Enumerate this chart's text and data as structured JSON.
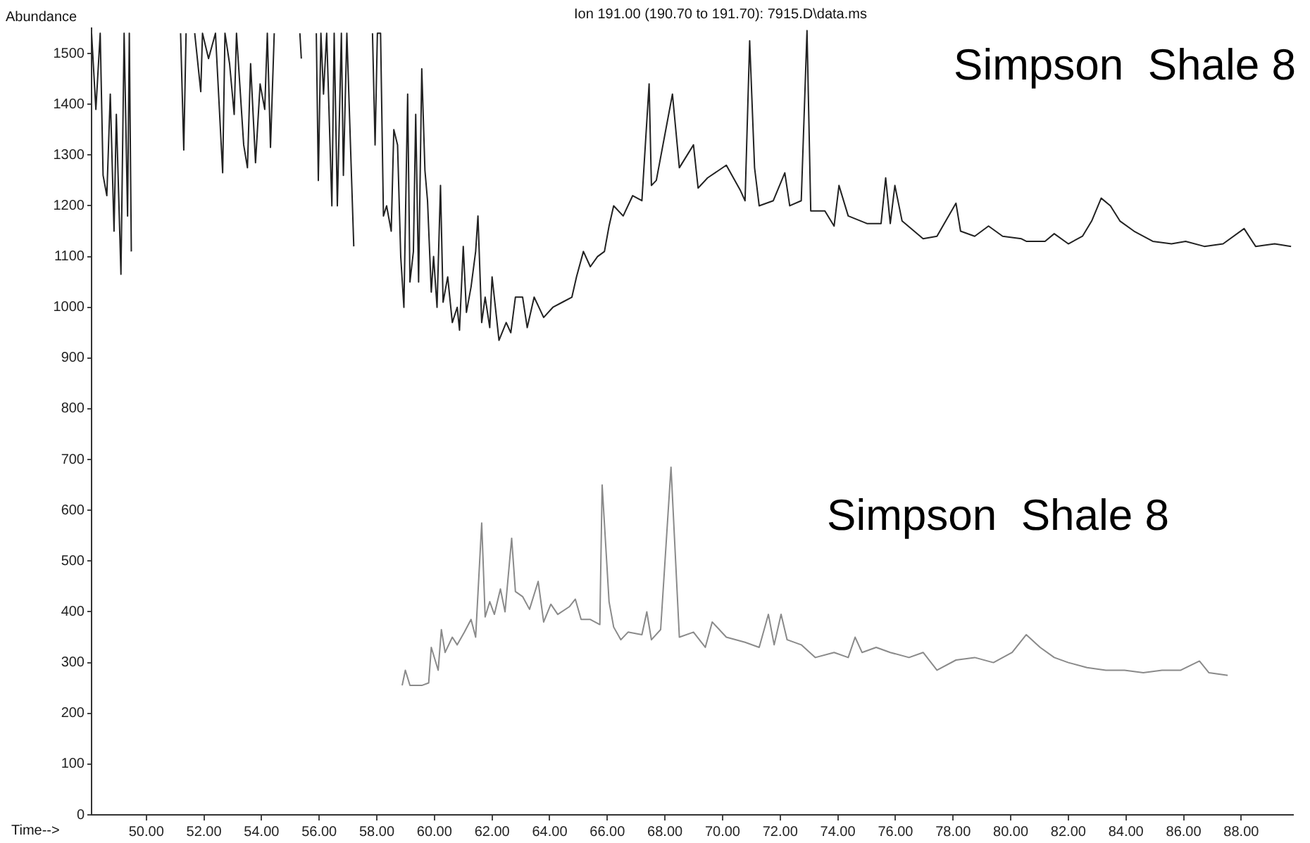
{
  "chart_data": {
    "type": "line",
    "title": "Ion 191.00 (190.70 to 191.70): 7915.D\\data.ms",
    "xlabel": "Time-->",
    "ylabel": "Abundance",
    "annotations": [
      "Simpson  Shale 8",
      "Simpson  Shale 8"
    ],
    "xlim": [
      48.1,
      89.8
    ],
    "ylim": [
      0,
      1550
    ],
    "xticks": [
      {
        "value": 50,
        "label": "50.00"
      },
      {
        "value": 52,
        "label": "52.00"
      },
      {
        "value": 54,
        "label": "54.00"
      },
      {
        "value": 56,
        "label": "56.00"
      },
      {
        "value": 58,
        "label": "58.00"
      },
      {
        "value": 60,
        "label": "60.00"
      },
      {
        "value": 62,
        "label": "62.00"
      },
      {
        "value": 64,
        "label": "64.00"
      },
      {
        "value": 66,
        "label": "66.00"
      },
      {
        "value": 68,
        "label": "68.00"
      },
      {
        "value": 70,
        "label": "70.00"
      },
      {
        "value": 72,
        "label": "72.00"
      },
      {
        "value": 74,
        "label": "74.00"
      },
      {
        "value": 76,
        "label": "76.00"
      },
      {
        "value": 78,
        "label": "78.00"
      },
      {
        "value": 80,
        "label": "80.00"
      },
      {
        "value": 82,
        "label": "82.00"
      },
      {
        "value": 84,
        "label": "84.00"
      },
      {
        "value": 86,
        "label": "86.00"
      },
      {
        "value": 88,
        "label": "88.00"
      }
    ],
    "yticks": [
      0,
      100,
      200,
      300,
      400,
      500,
      600,
      700,
      800,
      900,
      1000,
      1100,
      1200,
      1300,
      1400,
      1500
    ],
    "grid": false,
    "legend": false,
    "marker": "none",
    "line_style": "solid",
    "series": [
      {
        "color": "#222222",
        "x": [
          48.1,
          48.25,
          48.4,
          48.5,
          48.63,
          48.75,
          48.88,
          48.96,
          49.12,
          49.23,
          49.35,
          49.41,
          49.48,
          49.6,
          51.19,
          51.3,
          51.38,
          51.5,
          51.68,
          51.89,
          51.95,
          52.16,
          52.4,
          52.65,
          52.73,
          52.89,
          53.05,
          53.13,
          53.38,
          53.51,
          53.62,
          53.79,
          53.95,
          54.11,
          54.2,
          54.31,
          54.44,
          54.6,
          55.33,
          55.38,
          55.5,
          55.9,
          55.97,
          56.06,
          56.15,
          56.26,
          56.44,
          56.52,
          56.63,
          56.77,
          56.84,
          56.96,
          57.2,
          57.3,
          57.85,
          57.94,
          58.02,
          58.13,
          58.23,
          58.34,
          58.5,
          58.59,
          58.72,
          58.83,
          58.94,
          59.07,
          59.15,
          59.27,
          59.35,
          59.45,
          59.56,
          59.67,
          59.76,
          59.89,
          59.97,
          60.09,
          60.21,
          60.3,
          60.46,
          60.62,
          60.79,
          60.87,
          61.0,
          61.11,
          61.27,
          61.43,
          61.51,
          61.64,
          61.76,
          61.92,
          62.0,
          62.24,
          62.49,
          62.65,
          62.81,
          63.06,
          63.22,
          63.46,
          63.79,
          64.11,
          64.44,
          64.77,
          64.93,
          65.17,
          65.41,
          65.66,
          65.9,
          66.06,
          66.22,
          66.55,
          66.88,
          67.2,
          67.45,
          67.53,
          67.7,
          68.26,
          68.5,
          68.99,
          69.15,
          69.48,
          70.13,
          70.62,
          70.78,
          70.94,
          71.11,
          71.27,
          71.76,
          72.16,
          72.33,
          72.73,
          72.93,
          73.06,
          73.55,
          73.87,
          74.04,
          74.36,
          75.01,
          75.5,
          75.66,
          75.82,
          75.98,
          76.23,
          76.96,
          77.44,
          78.1,
          78.26,
          78.75,
          79.23,
          79.72,
          80.37,
          80.54,
          81.19,
          81.51,
          82.0,
          82.49,
          82.81,
          83.14,
          83.46,
          83.79,
          84.28,
          84.93,
          85.58,
          86.07,
          86.72,
          87.37,
          88.1,
          88.5,
          89.16,
          89.73
        ],
        "values": [
          1540,
          1390,
          1540,
          1260,
          1220,
          1420,
          1150,
          1380,
          1065,
          1540,
          1180,
          1540,
          1110,
          null,
          1540,
          1310,
          1540,
          null,
          1540,
          1425,
          1540,
          1490,
          1540,
          1265,
          1540,
          1480,
          1380,
          1540,
          1320,
          1275,
          1480,
          1285,
          1440,
          1390,
          1540,
          1315,
          1540,
          null,
          1540,
          1490,
          null,
          1540,
          1250,
          1540,
          1420,
          1540,
          1200,
          1540,
          1200,
          1540,
          1260,
          1540,
          1120,
          null,
          1540,
          1320,
          1540,
          1540,
          1180,
          1200,
          1150,
          1350,
          1320,
          1100,
          1000,
          1420,
          1050,
          1110,
          1380,
          1050,
          1470,
          1270,
          1210,
          1030,
          1100,
          1000,
          1240,
          1010,
          1060,
          970,
          1000,
          955,
          1120,
          990,
          1040,
          1110,
          1180,
          970,
          1020,
          960,
          1060,
          935,
          970,
          950,
          1020,
          1020,
          960,
          1020,
          980,
          1000,
          1010,
          1020,
          1060,
          1110,
          1080,
          1100,
          1110,
          1160,
          1200,
          1180,
          1220,
          1210,
          1440,
          1240,
          1250,
          1420,
          1275,
          1320,
          1235,
          1255,
          1280,
          1230,
          1210,
          1525,
          1275,
          1200,
          1210,
          1265,
          1200,
          1210,
          1545,
          1190,
          1190,
          1160,
          1240,
          1180,
          1165,
          1165,
          1255,
          1165,
          1240,
          1170,
          1135,
          1140,
          1205,
          1150,
          1140,
          1160,
          1140,
          1135,
          1130,
          1130,
          1145,
          1125,
          1140,
          1170,
          1215,
          1200,
          1170,
          1150,
          1130,
          1125,
          1130,
          1120,
          1125,
          1155,
          1120,
          1125,
          1120
        ]
      },
      {
        "color": "#8a8a8a",
        "x": [
          58.88,
          58.99,
          59.15,
          59.56,
          59.8,
          59.89,
          60.13,
          60.24,
          60.37,
          60.62,
          60.79,
          61.04,
          61.27,
          61.43,
          61.64,
          61.76,
          61.92,
          62.08,
          62.29,
          62.45,
          62.68,
          62.81,
          63.06,
          63.3,
          63.6,
          63.79,
          64.04,
          64.28,
          64.68,
          64.89,
          65.09,
          65.41,
          65.74,
          65.82,
          66.06,
          66.22,
          66.47,
          66.72,
          67.2,
          67.37,
          67.53,
          67.85,
          68.21,
          68.5,
          68.99,
          69.4,
          69.64,
          70.13,
          70.78,
          71.27,
          71.59,
          71.79,
          72.03,
          72.24,
          72.73,
          73.22,
          73.87,
          74.36,
          74.6,
          74.84,
          75.33,
          75.82,
          76.47,
          76.96,
          77.44,
          78.1,
          78.75,
          79.4,
          80.05,
          80.54,
          81.02,
          81.51,
          82.0,
          82.65,
          83.3,
          83.95,
          84.6,
          85.25,
          85.9,
          86.55,
          86.88,
          87.53
        ],
        "values": [
          255,
          285,
          255,
          255,
          260,
          330,
          285,
          365,
          320,
          350,
          335,
          360,
          385,
          350,
          575,
          390,
          420,
          395,
          445,
          400,
          545,
          440,
          430,
          405,
          460,
          380,
          415,
          395,
          410,
          425,
          385,
          385,
          375,
          650,
          420,
          370,
          345,
          360,
          355,
          400,
          345,
          365,
          685,
          350,
          360,
          330,
          380,
          350,
          340,
          330,
          395,
          335,
          395,
          345,
          335,
          310,
          320,
          310,
          350,
          320,
          330,
          320,
          310,
          320,
          285,
          305,
          310,
          300,
          320,
          355,
          330,
          310,
          300,
          290,
          285,
          285,
          280,
          285,
          285,
          303,
          280,
          275
        ]
      }
    ]
  }
}
